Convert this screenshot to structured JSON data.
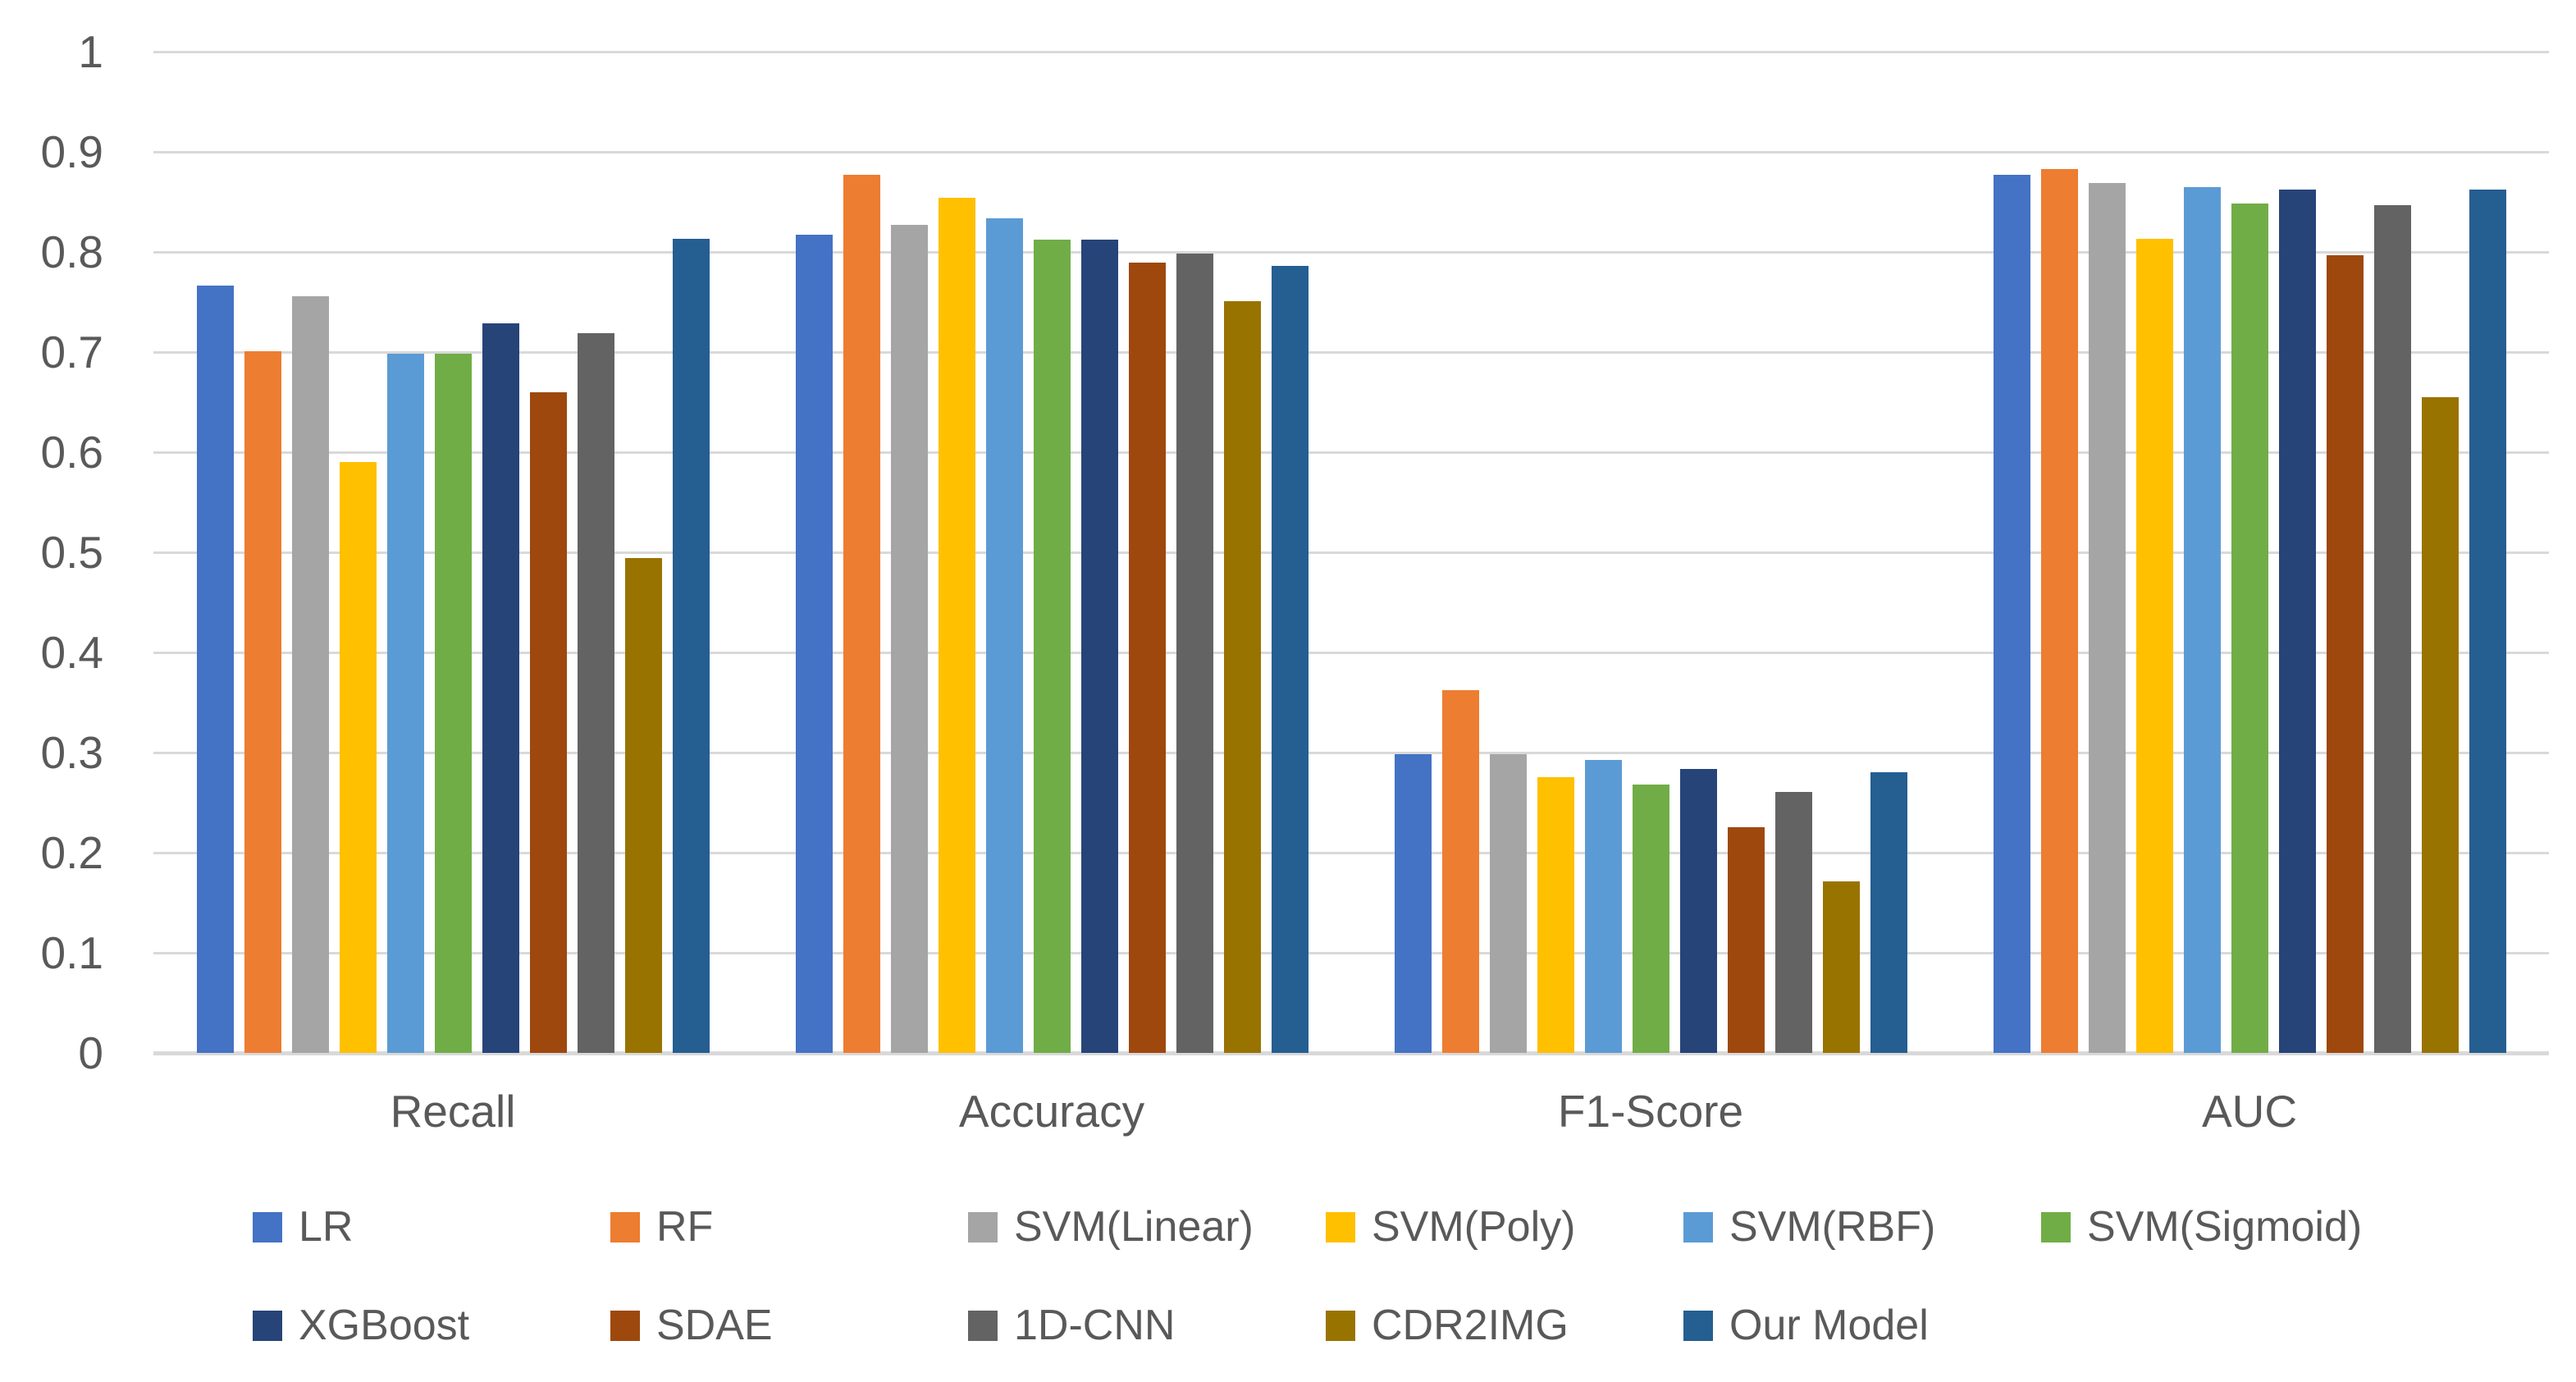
{
  "chart_data": {
    "type": "bar",
    "title": "",
    "xlabel": "",
    "ylabel": "",
    "categories": [
      "Recall",
      "Accuracy",
      "F1-Score",
      "AUC"
    ],
    "series": [
      {
        "name": "LR",
        "color": "#4472C4",
        "values": [
          0.766,
          0.817,
          0.298,
          0.877
        ]
      },
      {
        "name": "RF",
        "color": "#ED7D31",
        "values": [
          0.701,
          0.877,
          0.362,
          0.883
        ]
      },
      {
        "name": "SVM(Linear)",
        "color": "#A5A5A5",
        "values": [
          0.756,
          0.827,
          0.298,
          0.869
        ]
      },
      {
        "name": "SVM(Poly)",
        "color": "#FFC000",
        "values": [
          0.59,
          0.854,
          0.275,
          0.813
        ]
      },
      {
        "name": "SVM(RBF)",
        "color": "#5B9BD5",
        "values": [
          0.698,
          0.834,
          0.293,
          0.865
        ]
      },
      {
        "name": "SVM(Sigmoid)",
        "color": "#70AD47",
        "values": [
          0.698,
          0.812,
          0.268,
          0.848
        ]
      },
      {
        "name": "XGBoost",
        "color": "#264478",
        "values": [
          0.729,
          0.812,
          0.284,
          0.862
        ]
      },
      {
        "name": "SDAE",
        "color": "#9E480E",
        "values": [
          0.66,
          0.789,
          0.225,
          0.797
        ]
      },
      {
        "name": "1D-CNN",
        "color": "#636363",
        "values": [
          0.719,
          0.798,
          0.261,
          0.847
        ]
      },
      {
        "name": "CDR2IMG",
        "color": "#997300",
        "values": [
          0.494,
          0.751,
          0.171,
          0.655
        ]
      },
      {
        "name": "Our Model",
        "color": "#255E91",
        "values": [
          0.813,
          0.786,
          0.28,
          0.862
        ]
      }
    ],
    "ylim": [
      0,
      1
    ],
    "yticks": [
      {
        "value": 0,
        "label": "0"
      },
      {
        "value": 0.1,
        "label": "0.1"
      },
      {
        "value": 0.2,
        "label": "0.2"
      },
      {
        "value": 0.3,
        "label": "0.3"
      },
      {
        "value": 0.4,
        "label": "0.4"
      },
      {
        "value": 0.5,
        "label": "0.5"
      },
      {
        "value": 0.6,
        "label": "0.6"
      },
      {
        "value": 0.7,
        "label": "0.7"
      },
      {
        "value": 0.8,
        "label": "0.8"
      },
      {
        "value": 0.9,
        "label": "0.9"
      },
      {
        "value": 1,
        "label": "1"
      }
    ],
    "grid": true,
    "legend_position": "bottom",
    "legend_columns": 6
  },
  "colors": {
    "background": "#FFFFFF",
    "gridline": "#D9D9D9",
    "axis_text": "#595959"
  }
}
